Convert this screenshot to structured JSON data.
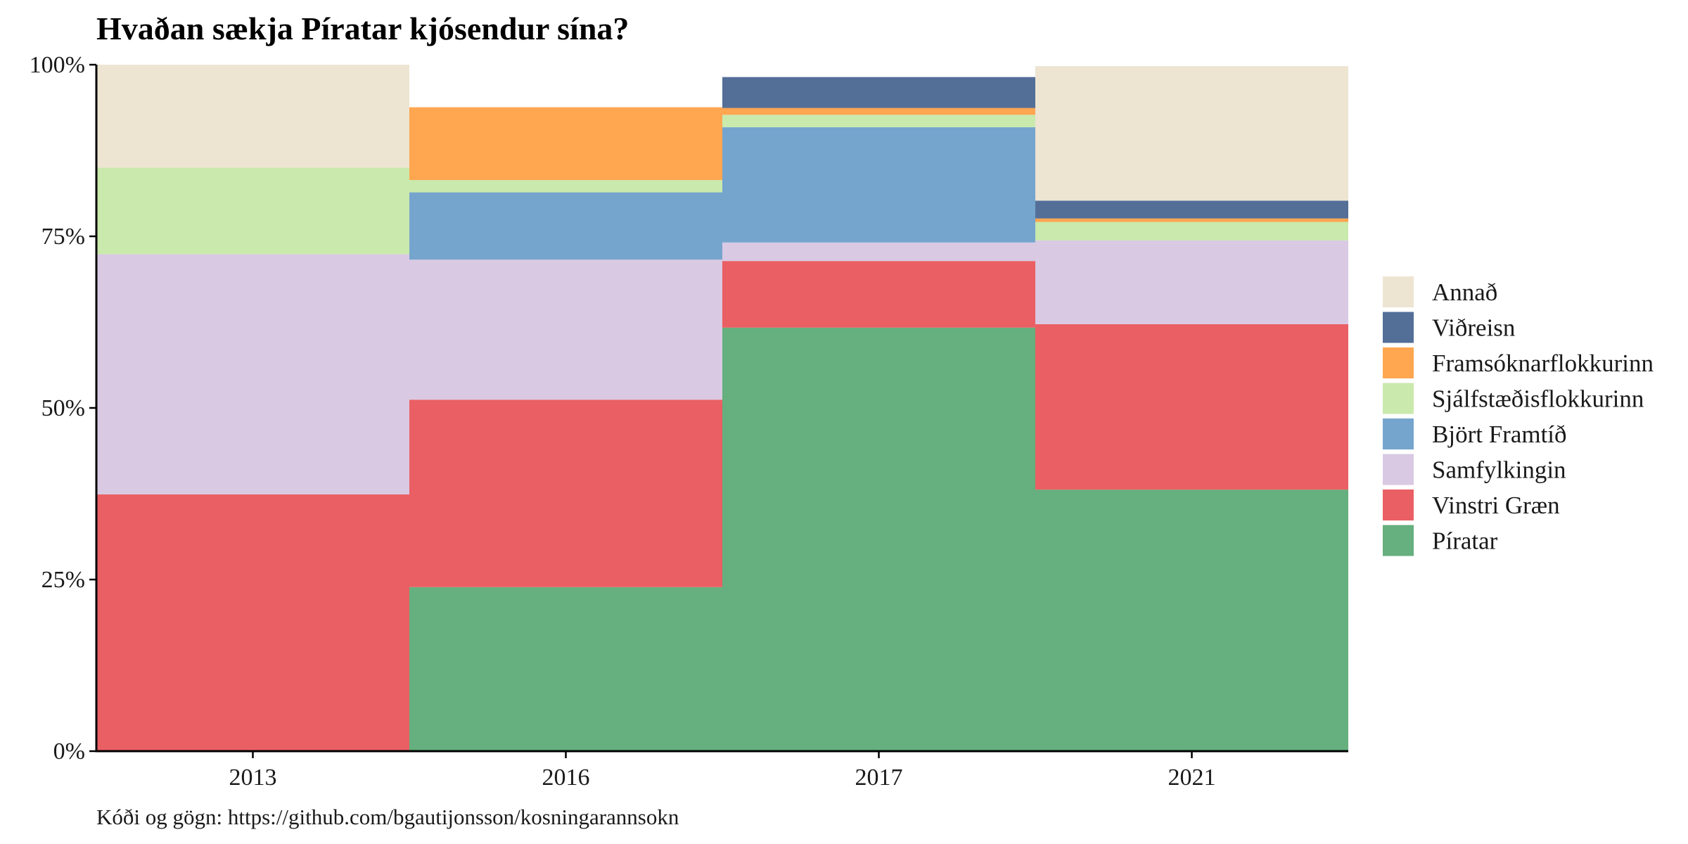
{
  "chart_data": {
    "type": "bar",
    "stacked": true,
    "title": "Hvaðan sækja Píratar kjósendur sína?",
    "caption": "Kóði og gögn: https://github.com/bgautijonsson/kosningarannsokn",
    "xlabel": "",
    "ylabel": "",
    "categories": [
      "2013",
      "2016",
      "2017",
      "2021"
    ],
    "y_ticks": [
      "0%",
      "25%",
      "50%",
      "75%",
      "100%"
    ],
    "ylim": [
      0,
      100
    ],
    "legend_position": "right",
    "grid": false,
    "series": [
      {
        "name": "Píratar",
        "color": "#66AF7E",
        "values": [
          0,
          23.9,
          61.7,
          38.1
        ]
      },
      {
        "name": "Vinstri Græn",
        "color": "#EA5F63",
        "values": [
          37.4,
          27.3,
          9.7,
          24.1
        ]
      },
      {
        "name": "Samfylkingin",
        "color": "#D9C9E3",
        "values": [
          35.0,
          20.4,
          2.7,
          12.2
        ]
      },
      {
        "name": "Björt Framtíð",
        "color": "#75A5CD",
        "values": [
          0,
          9.8,
          16.8,
          0
        ]
      },
      {
        "name": "Sjálfstæðisflokkurinn",
        "color": "#CAE9AD",
        "values": [
          12.6,
          1.8,
          1.8,
          2.7
        ]
      },
      {
        "name": "Framsóknarflokkurinn",
        "color": "#FFA650",
        "values": [
          0,
          10.6,
          1.0,
          0.5
        ]
      },
      {
        "name": "Viðreisn",
        "color": "#536F98",
        "values": [
          0,
          0,
          4.5,
          2.6
        ]
      },
      {
        "name": "Annað",
        "color": "#EDE4D2",
        "values": [
          15.0,
          0,
          0,
          19.6
        ]
      }
    ],
    "legend_order": [
      "Annað",
      "Viðreisn",
      "Framsóknarflokkurinn",
      "Sjálfstæðisflokkurinn",
      "Björt Framtíð",
      "Samfylkingin",
      "Vinstri Græn",
      "Píratar"
    ]
  }
}
